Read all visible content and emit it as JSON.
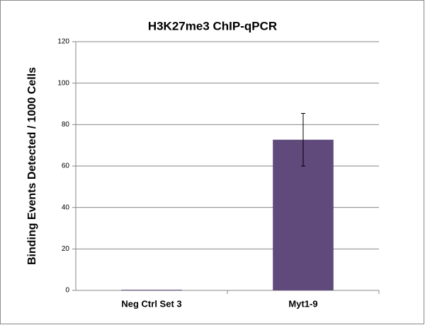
{
  "chart_data": {
    "type": "bar",
    "title": "H3K27me3 ChIP-qPCR",
    "y_label": "Binding Events Detected / 1000 Cells",
    "categories": [
      "Neg Ctrl Set 3",
      "Myt1-9"
    ],
    "values": [
      0.3,
      72.7
    ],
    "errors": [
      null,
      12.7
    ],
    "color": "#604a7b",
    "ylim": [
      0,
      120
    ],
    "yticks": [
      0,
      20,
      40,
      60,
      80,
      100,
      120
    ],
    "grid": true
  }
}
